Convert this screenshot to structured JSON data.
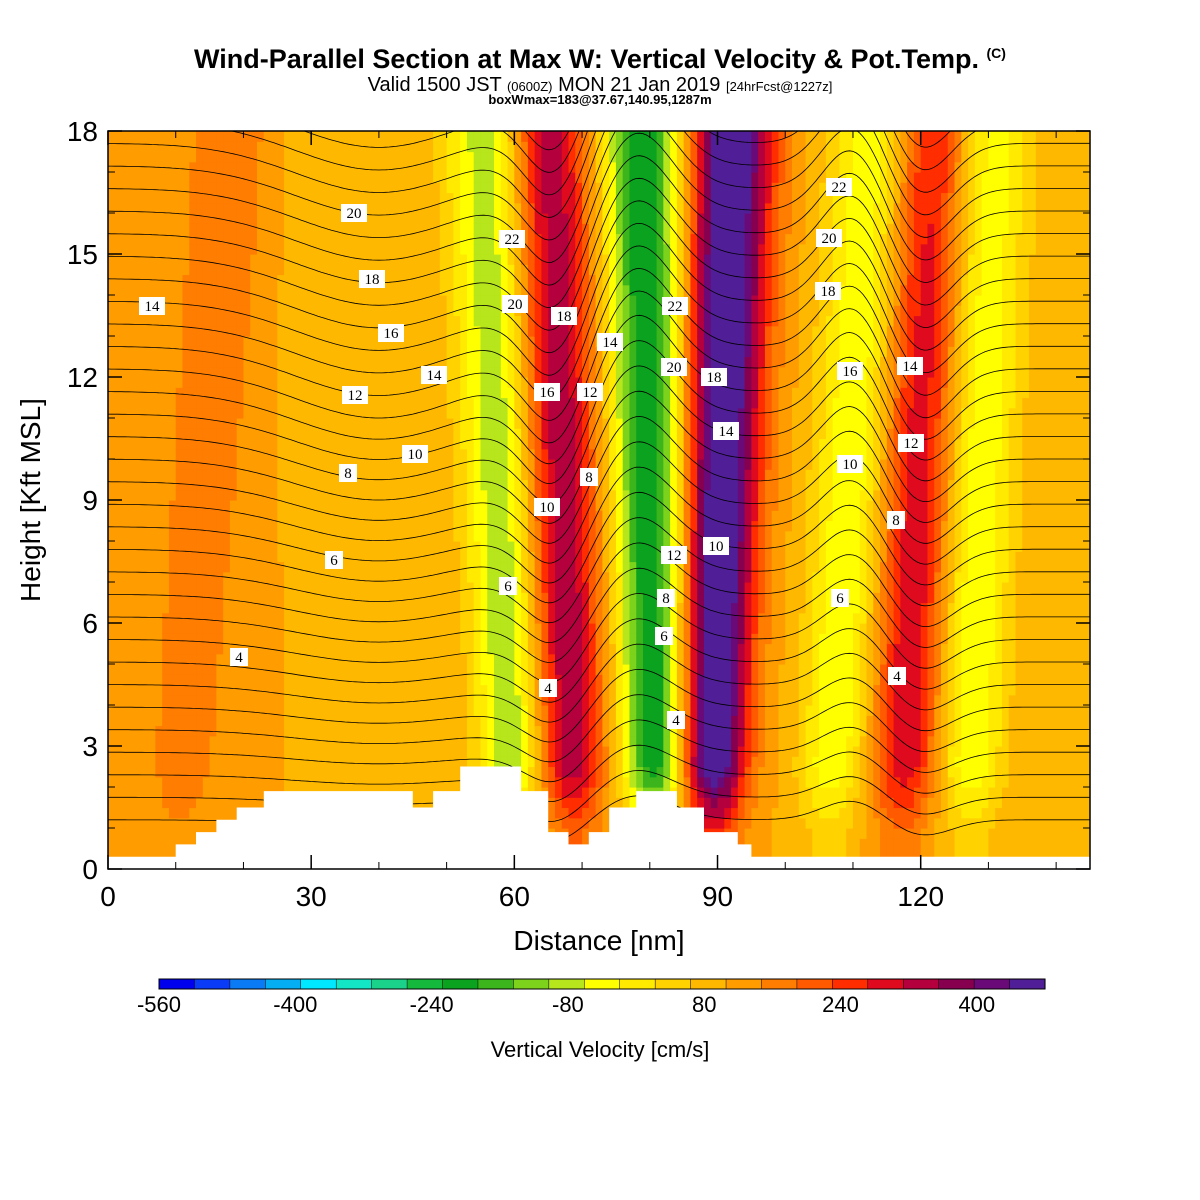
{
  "title": {
    "main": "Wind-Parallel Section at Max W: Vertical Velocity & Pot.Temp.",
    "mark": "(C)",
    "valid_prefix": "Valid 1500 JST",
    "valid_z": "(0600Z)",
    "valid_date": "MON 21 Jan 2019",
    "valid_fcst": "[24hrFcst@1227z]",
    "boxmax": "boxWmax=183@37.67,140.95,1287m"
  },
  "colorbar_label": "Vertical Velocity [cm/s]",
  "chart_data": {
    "type": "heatmap",
    "xlabel": "Distance [nm]",
    "ylabel": "Height [Kft MSL]",
    "xlim": [
      0,
      145
    ],
    "ylim": [
      0,
      18
    ],
    "xticks": [
      0,
      30,
      60,
      90,
      120
    ],
    "yticks": [
      0,
      3,
      6,
      9,
      12,
      15,
      18
    ],
    "colorbar": {
      "ticks": [
        -560,
        -400,
        -240,
        -80,
        80,
        240,
        400
      ],
      "colors": [
        "#0000ee",
        "#0a3cf8",
        "#0a7af5",
        "#05aef2",
        "#00e8ff",
        "#12e6c4",
        "#1ad28a",
        "#15ba3c",
        "#0aa21e",
        "#3cb51c",
        "#7dd21b",
        "#b6e61b",
        "#ffff00",
        "#ffea00",
        "#ffd200",
        "#ffb800",
        "#ff9c00",
        "#ff7d00",
        "#ff5a00",
        "#ff2d00",
        "#e00a1e",
        "#b4003c",
        "#870050",
        "#6a0a78",
        "#501e96"
      ]
    },
    "w_field_cm_s": {
      "background": 40,
      "columns": [
        {
          "x_bottom": 10,
          "x_top": 18,
          "w": 80
        },
        {
          "x_bottom": 41,
          "x_top": 29,
          "w": -20
        },
        {
          "x_bottom": 60,
          "x_top": 56,
          "w": -200
        },
        {
          "x_bottom": 69,
          "x_top": 65,
          "w": 240
        },
        {
          "x_bottom": 81,
          "x_top": 79,
          "w": -320
        },
        {
          "x_bottom": 89,
          "x_top": 92,
          "w": 400
        },
        {
          "x_bottom": 106,
          "x_top": 113,
          "w": -160
        },
        {
          "x_bottom": 117,
          "x_top": 122,
          "w": 200
        },
        {
          "x_bottom": 127,
          "x_top": 130,
          "w": -160
        }
      ]
    },
    "theta_contour_labels": [
      "4",
      "4",
      "4",
      "4",
      "6",
      "6",
      "6",
      "6",
      "8",
      "8",
      "8",
      "8",
      "10",
      "10",
      "10",
      "10",
      "12",
      "12",
      "12",
      "12",
      "14",
      "14",
      "14",
      "14",
      "14",
      "16",
      "16",
      "16",
      "18",
      "18",
      "18",
      "18",
      "20",
      "20",
      "20",
      "20",
      "22",
      "22",
      "22"
    ],
    "terrain_kft": [
      {
        "x": 0,
        "h": 0.3
      },
      {
        "x": 10,
        "h": 0.6
      },
      {
        "x": 13,
        "h": 0.9
      },
      {
        "x": 16,
        "h": 1.2
      },
      {
        "x": 19,
        "h": 1.5
      },
      {
        "x": 23,
        "h": 1.9
      },
      {
        "x": 45,
        "h": 1.5
      },
      {
        "x": 48,
        "h": 1.9
      },
      {
        "x": 52,
        "h": 2.5
      },
      {
        "x": 61,
        "h": 1.9
      },
      {
        "x": 65,
        "h": 0.9
      },
      {
        "x": 68,
        "h": 0.6
      },
      {
        "x": 71,
        "h": 0.9
      },
      {
        "x": 74,
        "h": 1.5
      },
      {
        "x": 78,
        "h": 1.9
      },
      {
        "x": 84,
        "h": 1.5
      },
      {
        "x": 88,
        "h": 0.9
      },
      {
        "x": 93,
        "h": 0.6
      },
      {
        "x": 95,
        "h": 0.3
      },
      {
        "x": 145,
        "h": 0.3
      }
    ]
  }
}
